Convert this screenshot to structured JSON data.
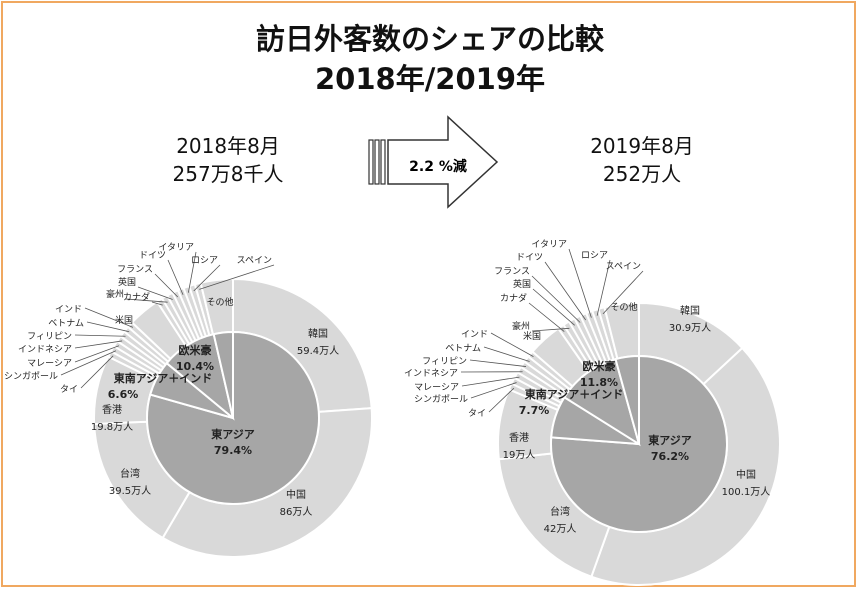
{
  "title_line1": "訪日外客数のシェアの比較",
  "title_line2": "2018年/2019年",
  "arrow_label": "2.2 %減",
  "colors": {
    "inner": "#a6a6a6",
    "outer": "#d9d9d9",
    "stroke": "#ffffff",
    "border": "#f0a860"
  },
  "chart_data": [
    {
      "type": "pie",
      "period": "2018年8月",
      "total": "257万8千人",
      "inner": [
        {
          "name": "東アジア",
          "share": "79.4%",
          "value": 79.4
        },
        {
          "name": "東南アジア＋インド",
          "share": "6.6%",
          "value": 6.6
        },
        {
          "name": "欧米豪",
          "share": "10.4%",
          "value": 10.4
        },
        {
          "name": "その他",
          "share": "",
          "value": 3.6
        }
      ],
      "outer": [
        {
          "name": "韓国",
          "label": "59.4万人",
          "value": 59.4
        },
        {
          "name": "中国",
          "label": "86万人",
          "value": 86
        },
        {
          "name": "台湾",
          "label": "39.5万人",
          "value": 39.5
        },
        {
          "name": "香港",
          "label": "19.8万人",
          "value": 19.8
        },
        {
          "name": "タイ",
          "label": "",
          "value": 1.7
        },
        {
          "name": "シンガポール",
          "label": "",
          "value": 1.7
        },
        {
          "name": "マレーシア",
          "label": "",
          "value": 1.7
        },
        {
          "name": "インドネシア",
          "label": "",
          "value": 1.7
        },
        {
          "name": "フィリピン",
          "label": "",
          "value": 1.7
        },
        {
          "name": "ベトナム",
          "label": "",
          "value": 1.7
        },
        {
          "name": "インド",
          "label": "",
          "value": 1.7
        },
        {
          "name": "米国",
          "label": "",
          "value": 9.3
        },
        {
          "name": "カナダ",
          "label": "",
          "value": 1.7
        },
        {
          "name": "豪州",
          "label": "",
          "value": 1.7
        },
        {
          "name": "英国",
          "label": "",
          "value": 1.7
        },
        {
          "name": "フランス",
          "label": "",
          "value": 1.7
        },
        {
          "name": "ドイツ",
          "label": "",
          "value": 1.7
        },
        {
          "name": "イタリア",
          "label": "",
          "value": 1.7
        },
        {
          "name": "ロシア",
          "label": "",
          "value": 1.7
        },
        {
          "name": "スペイン",
          "label": "",
          "value": 1.7
        },
        {
          "name": "その他",
          "label": "",
          "value": 9.3
        }
      ]
    },
    {
      "type": "pie",
      "period": "2019年8月",
      "total": "252万人",
      "inner": [
        {
          "name": "東アジア",
          "share": "76.2%",
          "value": 76.2
        },
        {
          "name": "東南アジア＋インド",
          "share": "7.7%",
          "value": 7.7
        },
        {
          "name": "欧米豪",
          "share": "11.8%",
          "value": 11.8
        },
        {
          "name": "その他",
          "share": "",
          "value": 4.3
        }
      ],
      "outer": [
        {
          "name": "韓国",
          "label": "30.9万人",
          "value": 30.9
        },
        {
          "name": "中国",
          "label": "100.1万人",
          "value": 100.1
        },
        {
          "name": "台湾",
          "label": "42万人",
          "value": 42
        },
        {
          "name": "香港",
          "label": "19万人",
          "value": 19
        },
        {
          "name": "タイ",
          "label": "",
          "value": 1.7
        },
        {
          "name": "シンガポール",
          "label": "",
          "value": 1.7
        },
        {
          "name": "マレーシア",
          "label": "",
          "value": 1.7
        },
        {
          "name": "インドネシア",
          "label": "",
          "value": 1.7
        },
        {
          "name": "フィリピン",
          "label": "",
          "value": 1.7
        },
        {
          "name": "ベトナム",
          "label": "",
          "value": 1.7
        },
        {
          "name": "インド",
          "label": "",
          "value": 1.7
        },
        {
          "name": "米国",
          "label": "",
          "value": 9.3
        },
        {
          "name": "カナダ",
          "label": "",
          "value": 1.7
        },
        {
          "name": "豪州",
          "label": "",
          "value": 1.7
        },
        {
          "name": "英国",
          "label": "",
          "value": 1.7
        },
        {
          "name": "フランス",
          "label": "",
          "value": 1.7
        },
        {
          "name": "ドイツ",
          "label": "",
          "value": 1.7
        },
        {
          "name": "イタリア",
          "label": "",
          "value": 1.7
        },
        {
          "name": "ロシア",
          "label": "",
          "value": 1.7
        },
        {
          "name": "スペイン",
          "label": "",
          "value": 1.7
        },
        {
          "name": "その他",
          "label": "",
          "value": 9.3
        }
      ]
    }
  ]
}
